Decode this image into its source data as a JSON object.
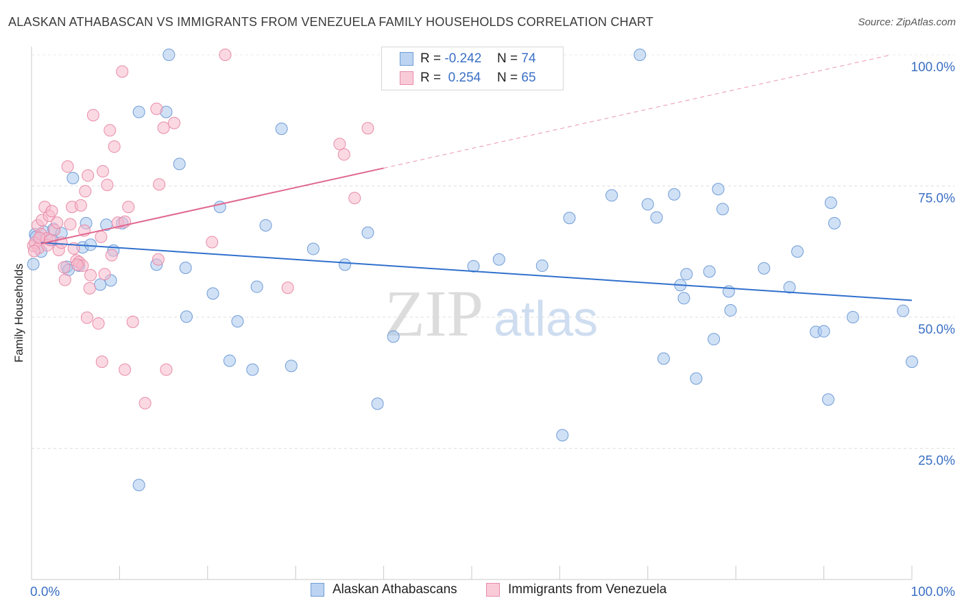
{
  "title": "ALASKAN ATHABASCAN VS IMMIGRANTS FROM VENEZUELA FAMILY HOUSEHOLDS CORRELATION CHART",
  "source": "Source: ZipAtlas.com",
  "watermark": {
    "zip": "ZIP",
    "atlas": "atlas"
  },
  "stats": [
    {
      "r_label": "R =",
      "r_value": "-0.242",
      "n_label": "N =",
      "n_value": "74"
    },
    {
      "r_label": "R =",
      "r_value": "0.254",
      "n_label": "N =",
      "n_value": "65"
    }
  ],
  "legend": {
    "series1": "Alaskan Athabascans",
    "series2": "Immigrants from Venezuela"
  },
  "chart_data": {
    "type": "scatter",
    "title": "ALASKAN ATHABASCAN VS IMMIGRANTS FROM VENEZUELA FAMILY HOUSEHOLDS CORRELATION CHART",
    "xlabel": "",
    "ylabel": "Family Households",
    "xlim": [
      0,
      100
    ],
    "ylim": [
      0,
      100
    ],
    "x_tick_labels": [
      "0.0%",
      "100.0%"
    ],
    "y_ticks": [
      25,
      50,
      75,
      100
    ],
    "y_tick_labels": [
      "25.0%",
      "50.0%",
      "75.0%",
      "100.0%"
    ],
    "grid": true,
    "colors": {
      "series1_fill": "#a9c8ef",
      "series1_stroke": "#6f9bd6",
      "series1_line": "#2f6fcd",
      "series2_fill": "#f7b9cc",
      "series2_stroke": "#e88aa8",
      "series2_line": "#e0668f",
      "label": "#3a6fc4"
    },
    "series": [
      {
        "name": "Alaskan Athabascans",
        "r": -0.242,
        "n": 74,
        "trend": {
          "x0": 0,
          "y0": 64.2,
          "x1": 100,
          "y1": 53.2,
          "dashed_from": null
        },
        "points": [
          [
            0.2,
            60.1
          ],
          [
            0.4,
            65.8
          ],
          [
            1.1,
            62.5
          ],
          [
            1.4,
            66.3
          ],
          [
            2.3,
            64.7
          ],
          [
            2.5,
            66.8
          ],
          [
            3.4,
            66.0
          ],
          [
            4.0,
            59.6
          ],
          [
            4.2,
            59.0
          ],
          [
            4.7,
            76.5
          ],
          [
            5.4,
            59.8
          ],
          [
            5.8,
            63.3
          ],
          [
            6.2,
            67.9
          ],
          [
            6.7,
            63.8
          ],
          [
            7.8,
            56.2
          ],
          [
            8.5,
            67.6
          ],
          [
            9.0,
            57.0
          ],
          [
            9.3,
            62.7
          ],
          [
            10.3,
            67.9
          ],
          [
            12.2,
            89.1
          ],
          [
            12.2,
            18.0
          ],
          [
            14.2,
            60.0
          ],
          [
            15.3,
            89.1
          ],
          [
            15.6,
            100.0
          ],
          [
            16.8,
            79.2
          ],
          [
            17.5,
            59.4
          ],
          [
            17.6,
            50.1
          ],
          [
            20.6,
            54.5
          ],
          [
            21.4,
            71.0
          ],
          [
            22.5,
            41.7
          ],
          [
            23.4,
            49.2
          ],
          [
            25.1,
            40.0
          ],
          [
            25.6,
            55.8
          ],
          [
            26.6,
            67.5
          ],
          [
            28.4,
            85.9
          ],
          [
            29.5,
            40.7
          ],
          [
            32.0,
            63.0
          ],
          [
            35.6,
            60.0
          ],
          [
            38.2,
            66.1
          ],
          [
            41.1,
            46.3
          ],
          [
            39.3,
            33.5
          ],
          [
            50.2,
            59.7
          ],
          [
            53.1,
            61.0
          ],
          [
            58.0,
            59.8
          ],
          [
            60.3,
            27.5
          ],
          [
            61.1,
            68.9
          ],
          [
            65.9,
            73.2
          ],
          [
            69.1,
            100.0
          ],
          [
            70.0,
            71.5
          ],
          [
            71.0,
            69.0
          ],
          [
            71.8,
            42.1
          ],
          [
            73.0,
            73.4
          ],
          [
            73.7,
            56.1
          ],
          [
            74.1,
            53.6
          ],
          [
            74.4,
            58.2
          ],
          [
            75.5,
            38.3
          ],
          [
            77.0,
            58.7
          ],
          [
            77.5,
            45.8
          ],
          [
            78.0,
            74.4
          ],
          [
            78.5,
            70.6
          ],
          [
            79.2,
            54.9
          ],
          [
            79.4,
            51.3
          ],
          [
            83.2,
            59.3
          ],
          [
            86.1,
            55.7
          ],
          [
            87.0,
            62.5
          ],
          [
            89.1,
            47.2
          ],
          [
            90.0,
            47.3
          ],
          [
            90.5,
            34.3
          ],
          [
            90.8,
            71.8
          ],
          [
            91.2,
            67.9
          ],
          [
            93.3,
            50.0
          ],
          [
            99.0,
            51.2
          ],
          [
            100.0,
            41.5
          ],
          [
            0.5,
            65.3
          ]
        ]
      },
      {
        "name": "Immigrants from Venezuela",
        "r": 0.254,
        "n": 65,
        "trend": {
          "x0": 0,
          "y0": 64.0,
          "x1": 100,
          "y1": 100.0,
          "solid_until_x": 40.0
        },
        "points": [
          [
            0.2,
            63.6
          ],
          [
            0.4,
            64.2
          ],
          [
            0.7,
            67.5
          ],
          [
            0.8,
            63.2
          ],
          [
            1.1,
            65.8
          ],
          [
            1.2,
            68.5
          ],
          [
            1.5,
            71.0
          ],
          [
            1.7,
            65.0
          ],
          [
            1.8,
            63.7
          ],
          [
            2.0,
            69.3
          ],
          [
            2.3,
            70.2
          ],
          [
            2.6,
            66.6
          ],
          [
            2.9,
            68.0
          ],
          [
            3.1,
            62.8
          ],
          [
            3.4,
            64.2
          ],
          [
            3.7,
            59.5
          ],
          [
            3.8,
            57.1
          ],
          [
            4.1,
            78.7
          ],
          [
            4.4,
            67.7
          ],
          [
            4.6,
            71.0
          ],
          [
            4.8,
            63.1
          ],
          [
            5.1,
            60.8
          ],
          [
            5.4,
            60.5
          ],
          [
            5.6,
            71.3
          ],
          [
            5.8,
            59.8
          ],
          [
            6.0,
            66.5
          ],
          [
            6.1,
            74.0
          ],
          [
            6.3,
            49.9
          ],
          [
            6.4,
            77.0
          ],
          [
            6.6,
            55.5
          ],
          [
            6.7,
            58.0
          ],
          [
            7.0,
            88.5
          ],
          [
            7.6,
            48.8
          ],
          [
            7.9,
            65.3
          ],
          [
            8.0,
            41.5
          ],
          [
            8.1,
            77.8
          ],
          [
            8.3,
            58.2
          ],
          [
            8.6,
            75.2
          ],
          [
            8.9,
            85.6
          ],
          [
            9.1,
            61.8
          ],
          [
            9.4,
            82.5
          ],
          [
            9.8,
            68.0
          ],
          [
            10.3,
            96.8
          ],
          [
            10.6,
            68.2
          ],
          [
            10.6,
            40.0
          ],
          [
            11.0,
            71.0
          ],
          [
            11.5,
            49.1
          ],
          [
            12.9,
            33.6
          ],
          [
            14.2,
            89.7
          ],
          [
            14.4,
            61.0
          ],
          [
            14.5,
            75.3
          ],
          [
            15.0,
            86.1
          ],
          [
            15.3,
            40.0
          ],
          [
            16.2,
            87.0
          ],
          [
            20.5,
            64.3
          ],
          [
            22.0,
            100.0
          ],
          [
            29.1,
            55.6
          ],
          [
            35.0,
            83.0
          ],
          [
            35.5,
            81.0
          ],
          [
            36.7,
            72.7
          ],
          [
            38.2,
            86.0
          ],
          [
            0.3,
            62.6
          ],
          [
            0.9,
            65.1
          ],
          [
            2.1,
            64.7
          ],
          [
            5.2,
            60.0
          ]
        ]
      }
    ]
  }
}
